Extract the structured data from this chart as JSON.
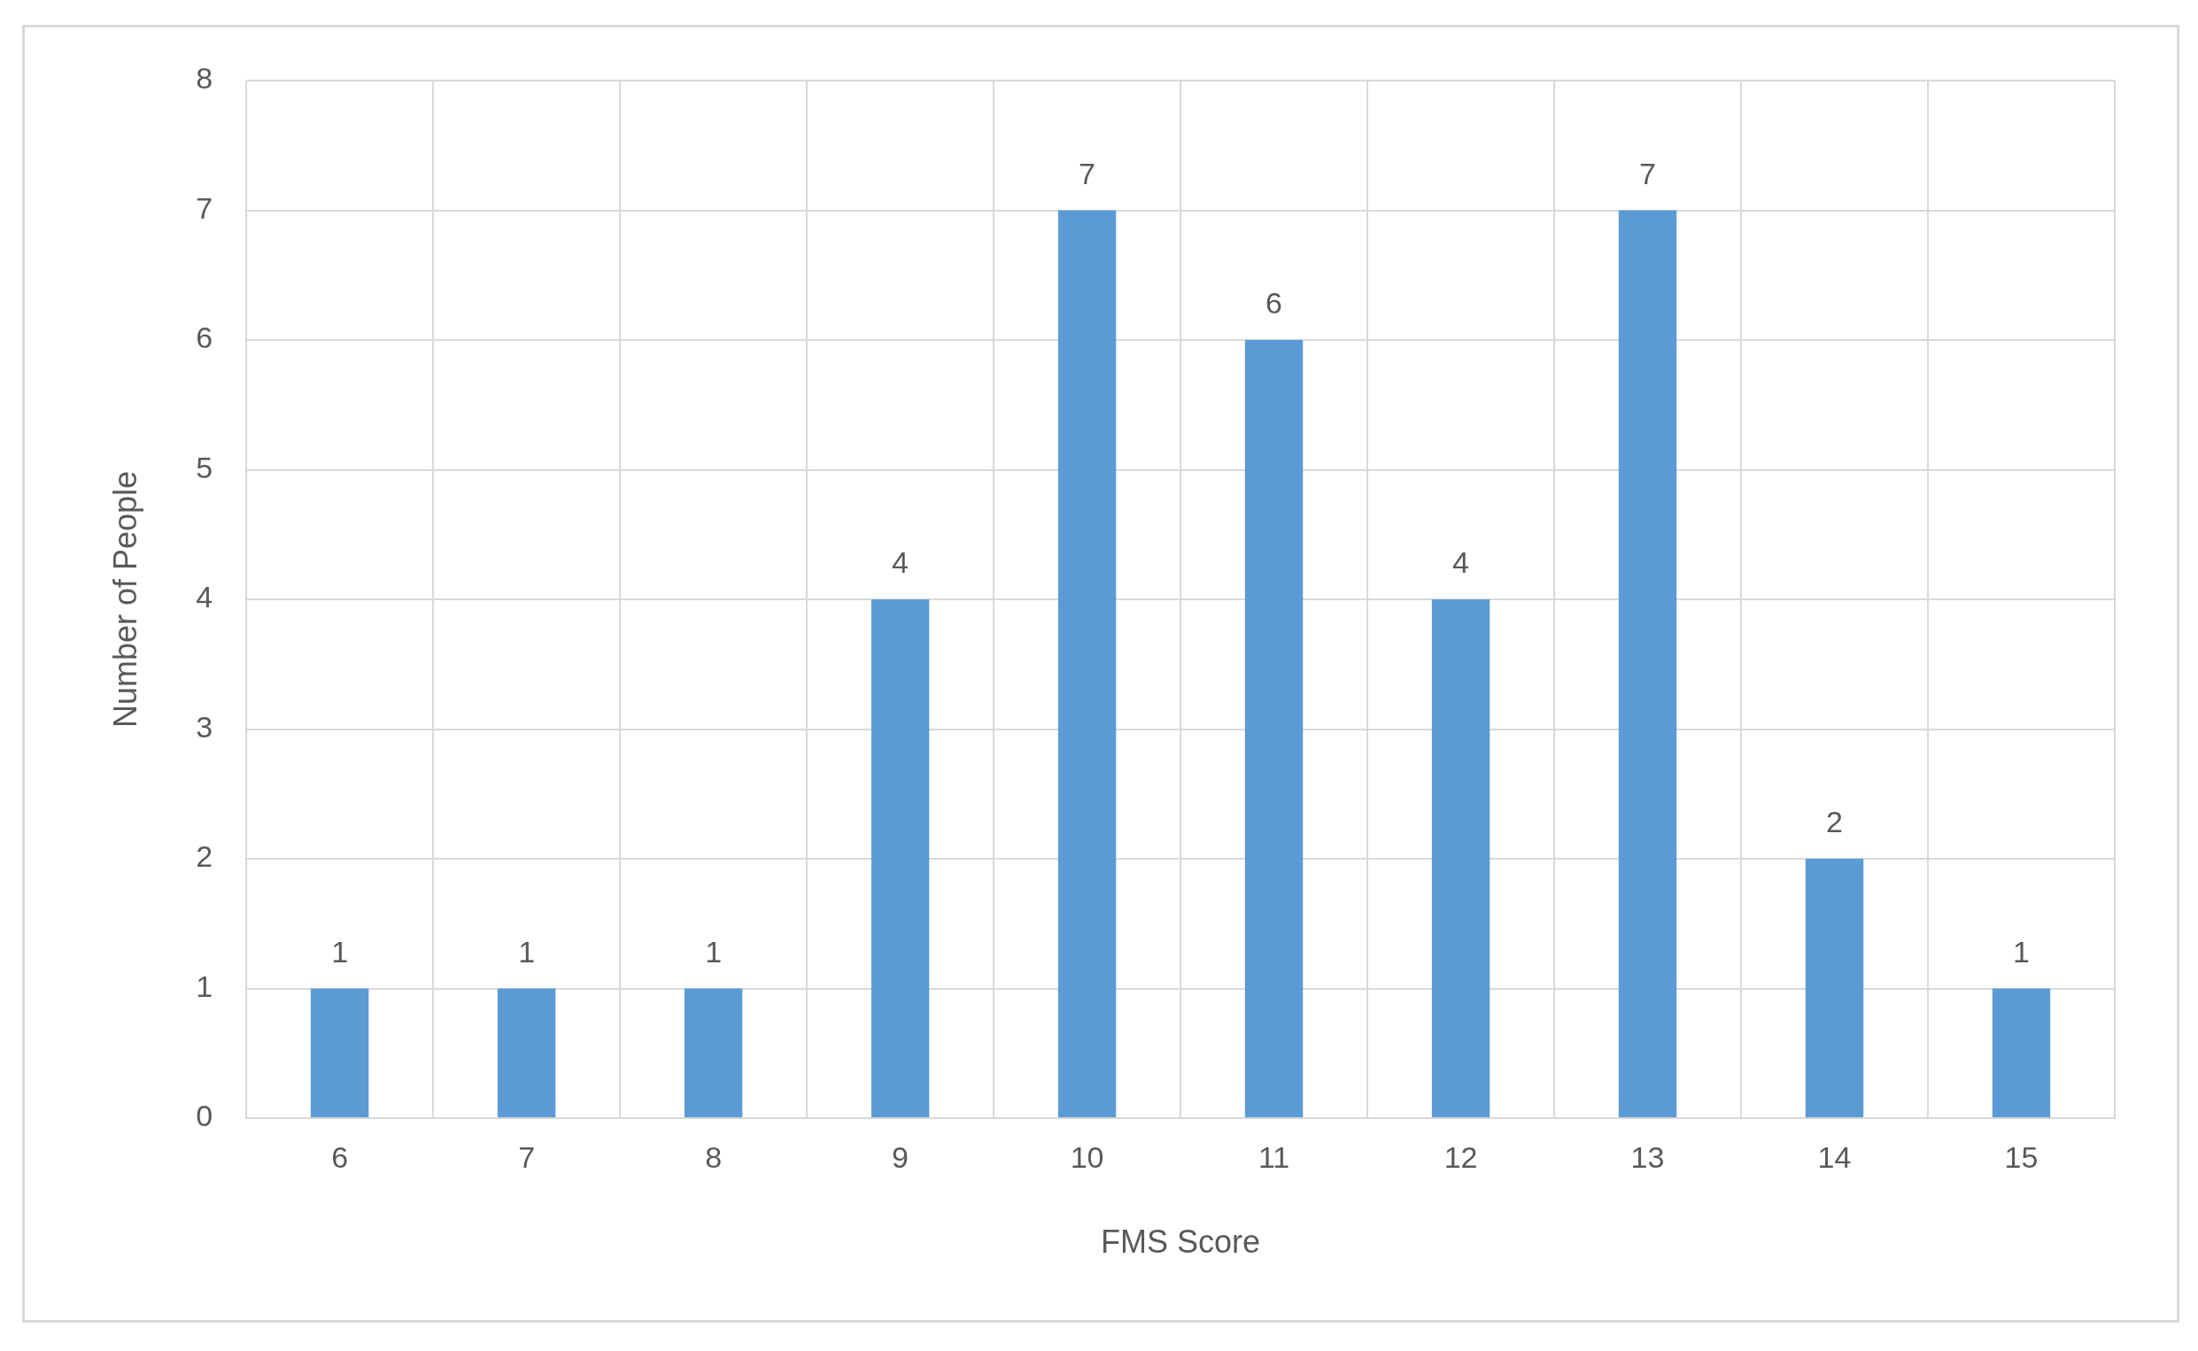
{
  "chart_data": {
    "type": "bar",
    "xlabel": "FMS Score",
    "ylabel": "Number of People",
    "categories": [
      "6",
      "7",
      "8",
      "9",
      "10",
      "11",
      "12",
      "13",
      "14",
      "15"
    ],
    "values": [
      1,
      1,
      1,
      4,
      7,
      6,
      4,
      7,
      2,
      1
    ],
    "color": "#5b9bd5",
    "ylim": [
      0,
      8
    ],
    "yticks": [
      0,
      1,
      2,
      3,
      4,
      5,
      6,
      7,
      8
    ],
    "grid": true,
    "data_labels": true
  }
}
